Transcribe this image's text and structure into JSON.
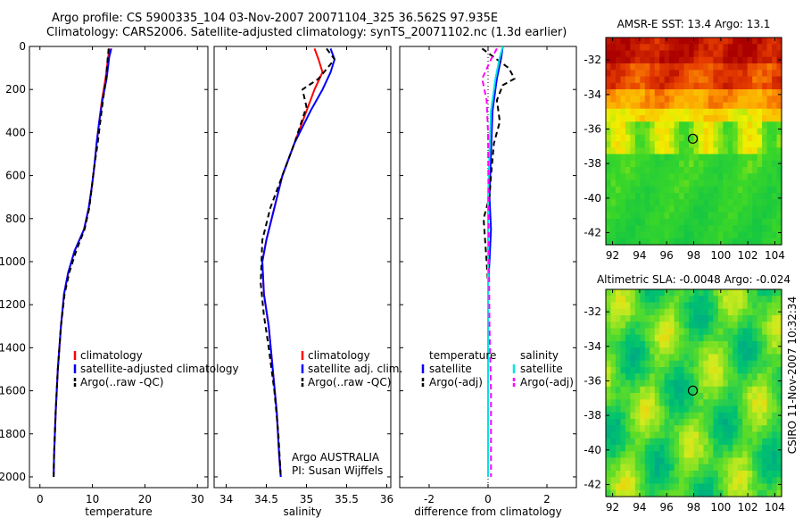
{
  "title_line1": "Argo profile: CS 5900335_104 03-Nov-2007 20071104_325 36.562S 97.935E",
  "title_line2": "Climatology: CARS2006. Satellite-adjusted climatology: synTS_20071102.nc (1.3d earlier)",
  "side_label": "CSIRO 11-Nov-2007 10:32:34",
  "chart_data": [
    {
      "type": "line",
      "id": "temperature",
      "xlabel": "temperature",
      "xlim": [
        -2,
        32
      ],
      "xticks": [
        0,
        10,
        20,
        30
      ],
      "ylim": [
        0,
        2050
      ],
      "yticks": [
        0,
        200,
        400,
        600,
        800,
        1000,
        1200,
        1400,
        1600,
        1800,
        2000
      ],
      "legend": [
        "climatology",
        "satellite-adjusted climatology",
        "Argo(..raw -QC)"
      ],
      "series": [
        {
          "name": "climatology",
          "color": "#ff0000",
          "dash": "",
          "points": [
            [
              13.3,
              10
            ],
            [
              13.0,
              50
            ],
            [
              12.5,
              150
            ],
            [
              11.8,
              250
            ],
            [
              11.3,
              350
            ],
            [
              10.8,
              450
            ],
            [
              10.4,
              550
            ],
            [
              9.9,
              650
            ],
            [
              9.3,
              750
            ],
            [
              8.4,
              850
            ],
            [
              6.6,
              950
            ],
            [
              5.4,
              1050
            ],
            [
              4.6,
              1150
            ],
            [
              4.0,
              1300
            ],
            [
              3.4,
              1500
            ],
            [
              3.0,
              1700
            ],
            [
              2.7,
              1900
            ],
            [
              2.6,
              2000
            ]
          ]
        },
        {
          "name": "satellite-adjusted climatology",
          "color": "#0000ff",
          "dash": "",
          "points": [
            [
              13.6,
              10
            ],
            [
              13.2,
              50
            ],
            [
              12.7,
              150
            ],
            [
              11.9,
              250
            ],
            [
              11.3,
              350
            ],
            [
              10.8,
              450
            ],
            [
              10.4,
              550
            ],
            [
              9.9,
              650
            ],
            [
              9.3,
              750
            ],
            [
              8.4,
              850
            ],
            [
              6.6,
              950
            ],
            [
              5.4,
              1050
            ],
            [
              4.6,
              1150
            ],
            [
              4.0,
              1300
            ],
            [
              3.4,
              1500
            ],
            [
              3.0,
              1700
            ],
            [
              2.7,
              1900
            ],
            [
              2.6,
              2000
            ]
          ]
        },
        {
          "name": "Argo(..raw -QC)",
          "color": "#000000",
          "dash": "6,4",
          "points": [
            [
              13.1,
              10
            ],
            [
              12.9,
              60
            ],
            [
              12.6,
              150
            ],
            [
              12.0,
              250
            ],
            [
              11.5,
              350
            ],
            [
              11.0,
              450
            ],
            [
              10.4,
              550
            ],
            [
              9.9,
              650
            ],
            [
              9.4,
              750
            ],
            [
              8.5,
              850
            ],
            [
              6.9,
              950
            ],
            [
              5.6,
              1050
            ],
            [
              4.7,
              1150
            ],
            [
              4.0,
              1300
            ],
            [
              3.4,
              1500
            ],
            [
              3.0,
              1700
            ],
            [
              2.7,
              1900
            ],
            [
              2.6,
              2000
            ]
          ]
        }
      ]
    },
    {
      "type": "line",
      "id": "salinity",
      "xlabel": "salinity",
      "xlim": [
        33.85,
        36.05
      ],
      "xticks": [
        34,
        34.5,
        35,
        35.5,
        36
      ],
      "ylim": [
        0,
        2050
      ],
      "yticks": [
        0,
        200,
        400,
        600,
        800,
        1000,
        1200,
        1400,
        1600,
        1800,
        2000
      ],
      "legend": [
        "climatology",
        "satellite adj. clim.",
        "Argo(..raw -QC)"
      ],
      "annotation": [
        "Argo AUSTRALIA",
        "PI: Susan Wijffels"
      ],
      "series": [
        {
          "name": "climatology",
          "color": "#ff0000",
          "dash": "",
          "points": [
            [
              35.1,
              10
            ],
            [
              35.15,
              60
            ],
            [
              35.2,
              120
            ],
            [
              35.1,
              200
            ],
            [
              35.0,
              300
            ],
            [
              34.85,
              450
            ],
            [
              34.7,
              600
            ],
            [
              34.6,
              750
            ],
            [
              34.5,
              900
            ],
            [
              34.45,
              1000
            ],
            [
              34.47,
              1150
            ],
            [
              34.53,
              1300
            ],
            [
              34.58,
              1500
            ],
            [
              34.63,
              1700
            ],
            [
              34.66,
              1900
            ],
            [
              34.68,
              2000
            ]
          ]
        },
        {
          "name": "satellite adj. clim.",
          "color": "#0000ff",
          "dash": "",
          "points": [
            [
              35.3,
              10
            ],
            [
              35.35,
              60
            ],
            [
              35.3,
              120
            ],
            [
              35.2,
              200
            ],
            [
              35.05,
              300
            ],
            [
              34.85,
              450
            ],
            [
              34.7,
              600
            ],
            [
              34.6,
              750
            ],
            [
              34.5,
              900
            ],
            [
              34.45,
              1000
            ],
            [
              34.47,
              1150
            ],
            [
              34.53,
              1300
            ],
            [
              34.58,
              1500
            ],
            [
              34.63,
              1700
            ],
            [
              34.66,
              1900
            ],
            [
              34.68,
              2000
            ]
          ]
        },
        {
          "name": "Argo(..raw -QC)",
          "color": "#000000",
          "dash": "6,4",
          "points": [
            [
              35.25,
              10
            ],
            [
              35.35,
              60
            ],
            [
              35.15,
              150
            ],
            [
              34.95,
              200
            ],
            [
              35.0,
              280
            ],
            [
              34.85,
              450
            ],
            [
              34.7,
              600
            ],
            [
              34.55,
              750
            ],
            [
              34.45,
              900
            ],
            [
              34.43,
              1100
            ],
            [
              34.47,
              1250
            ],
            [
              34.53,
              1400
            ],
            [
              34.6,
              1600
            ],
            [
              34.65,
              1800
            ],
            [
              34.68,
              2000
            ]
          ]
        }
      ]
    },
    {
      "type": "line",
      "id": "difference",
      "xlabel": "difference from climatology",
      "xlim": [
        -3,
        3
      ],
      "xticks": [
        -2,
        0,
        2
      ],
      "ylim": [
        0,
        2050
      ],
      "yticks": [
        0,
        200,
        400,
        600,
        800,
        1000,
        1200,
        1400,
        1600,
        1800,
        2000
      ],
      "legend_temperature": [
        "temperature",
        "satellite",
        "Argo(-adj)"
      ],
      "legend_salinity": [
        "salinity",
        "satellite",
        "Argo(-adj)"
      ],
      "series": [
        {
          "name": "temperature satellite",
          "color": "#0000ff",
          "dash": "",
          "points": [
            [
              0.5,
              0
            ],
            [
              0.45,
              50
            ],
            [
              0.3,
              150
            ],
            [
              0.15,
              300
            ],
            [
              0.1,
              500
            ],
            [
              0.05,
              700
            ],
            [
              0.1,
              850
            ],
            [
              0.05,
              1000
            ],
            [
              0,
              1100
            ],
            [
              0,
              2000
            ]
          ]
        },
        {
          "name": "temperature Argo(-adj)",
          "color": "#000000",
          "dash": "6,4",
          "points": [
            [
              -0.2,
              10
            ],
            [
              0.3,
              60
            ],
            [
              0.7,
              100
            ],
            [
              0.9,
              150
            ],
            [
              0.5,
              180
            ],
            [
              0.3,
              250
            ],
            [
              0.4,
              350
            ],
            [
              0.2,
              450
            ],
            [
              0.1,
              600
            ],
            [
              0.05,
              700
            ],
            [
              -0.15,
              800
            ],
            [
              -0.1,
              900
            ],
            [
              -0.05,
              1000
            ],
            [
              0,
              1100
            ],
            [
              0,
              2000
            ]
          ]
        },
        {
          "name": "salinity satellite",
          "color": "#00e5e5",
          "dash": "",
          "points": [
            [
              0.5,
              0
            ],
            [
              0.4,
              50
            ],
            [
              0.25,
              150
            ],
            [
              0.1,
              300
            ],
            [
              0.05,
              500
            ],
            [
              0,
              700
            ],
            [
              0,
              2000
            ]
          ]
        },
        {
          "name": "salinity Argo(-adj)",
          "color": "#ff00ff",
          "dash": "6,4",
          "points": [
            [
              0.3,
              10
            ],
            [
              0.1,
              60
            ],
            [
              -0.2,
              150
            ],
            [
              -0.05,
              250
            ],
            [
              0,
              400
            ],
            [
              0.02,
              800
            ],
            [
              0.05,
              1300
            ],
            [
              0.1,
              1600
            ],
            [
              0.1,
              2000
            ]
          ]
        }
      ]
    },
    {
      "type": "heatmap",
      "id": "sst-map",
      "title": "AMSR-E SST: 13.4 Argo: 13.1",
      "xlim": [
        91.5,
        104.5
      ],
      "xticks": [
        92,
        94,
        96,
        98,
        100,
        102,
        104
      ],
      "ylim": [
        -42.7,
        -30.7
      ],
      "yticks": [
        -32,
        -34,
        -36,
        -38,
        -40,
        -42
      ],
      "argo_position": [
        97.935,
        -36.562
      ]
    },
    {
      "type": "heatmap",
      "id": "sla-map",
      "title": "Altimetric SLA: -0.0048 Argo: -0.024",
      "xlim": [
        91.5,
        104.5
      ],
      "xticks": [
        92,
        94,
        96,
        98,
        100,
        102,
        104
      ],
      "ylim": [
        -42.7,
        -30.7
      ],
      "yticks": [
        -32,
        -34,
        -36,
        -38,
        -40,
        -42
      ],
      "argo_position": [
        97.935,
        -36.562
      ]
    }
  ]
}
